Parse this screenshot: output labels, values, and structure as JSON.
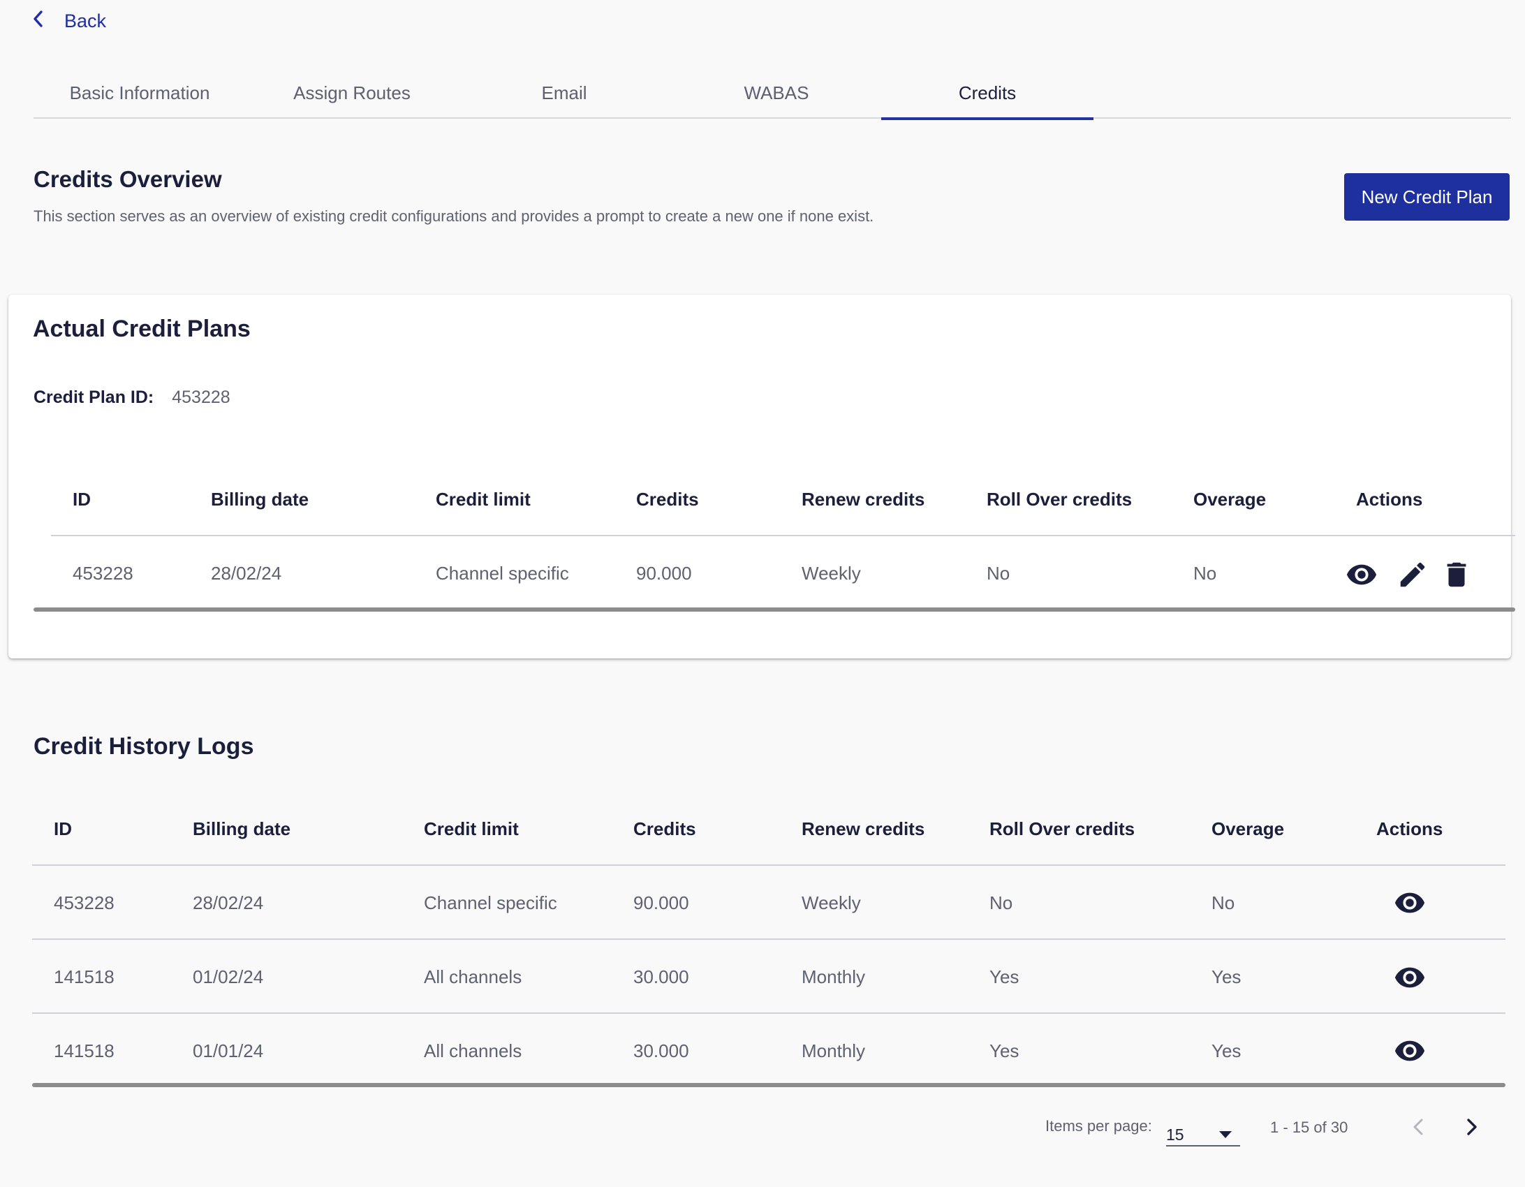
{
  "back": {
    "label": "Back"
  },
  "tabs": [
    {
      "label": "Basic Information"
    },
    {
      "label": "Assign Routes"
    },
    {
      "label": "Email"
    },
    {
      "label": "WABAS"
    },
    {
      "label": "Credits"
    }
  ],
  "active_tab": "Credits",
  "overview": {
    "title": "Credits Overview",
    "description": "This section serves as an overview of existing credit configurations and provides a prompt to create a new one if none exist.",
    "new_button": "New Credit Plan"
  },
  "actual_plans": {
    "title": "Actual Credit Plans",
    "plan_id_label": "Credit Plan ID:",
    "plan_id_value": "453228",
    "columns": [
      "ID",
      "Billing date",
      "Credit limit",
      "Credits",
      "Renew credits",
      "Roll Over credits",
      "Overage",
      "Actions"
    ],
    "rows": [
      {
        "id": "453228",
        "billing_date": "28/02/24",
        "credit_limit": "Channel specific",
        "credits": "90.000",
        "renew": "Weekly",
        "rollover": "No",
        "overage": "No",
        "actions": [
          "view-icon",
          "edit-icon",
          "delete-icon"
        ]
      }
    ]
  },
  "history": {
    "title": "Credit History Logs",
    "columns": [
      "ID",
      "Billing date",
      "Credit limit",
      "Credits",
      "Renew credits",
      "Roll Over credits",
      "Overage",
      "Actions"
    ],
    "rows": [
      {
        "id": "453228",
        "billing_date": "28/02/24",
        "credit_limit": "Channel specific",
        "credits": "90.000",
        "renew": "Weekly",
        "rollover": "No",
        "overage": "No",
        "actions": [
          "view-icon"
        ]
      },
      {
        "id": "141518",
        "billing_date": "01/02/24",
        "credit_limit": "All channels",
        "credits": "30.000",
        "renew": "Monthly",
        "rollover": "Yes",
        "overage": "Yes",
        "actions": [
          "view-icon"
        ]
      },
      {
        "id": "141518",
        "billing_date": "01/01/24",
        "credit_limit": "All channels",
        "credits": "30.000",
        "renew": "Monthly",
        "rollover": "Yes",
        "overage": "Yes",
        "actions": [
          "view-icon"
        ]
      }
    ]
  },
  "pagination": {
    "items_per_page_label": "Items per page:",
    "items_per_page_value": "15",
    "range": "1 - 15 of 30"
  },
  "colors": {
    "primary": "#1e2f9e",
    "link": "#1f2ea8",
    "background": "#f9f9f9"
  }
}
